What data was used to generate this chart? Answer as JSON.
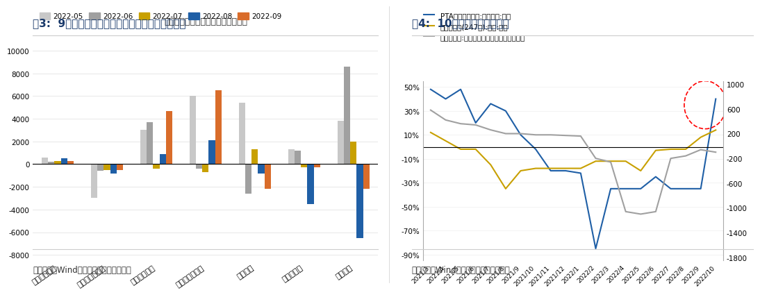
{
  "chart1": {
    "title": "图3:  9月社融结构：企业长短期贷款继续明显回升",
    "subtitle": "社会融资主要分项同比多增（亿元）",
    "categories": [
      "居民短期贷款",
      "居民中长期贷款",
      "企业短期贷款",
      "企业中长期贷款",
      "票据融资",
      "企业债融资",
      "政府债券"
    ],
    "series_labels": [
      "2022-05",
      "2022-06",
      "2022-07",
      "2022-08",
      "2022-09"
    ],
    "series_colors": [
      "#c8c8c8",
      "#a0a0a0",
      "#c8a000",
      "#1f5fa6",
      "#d96c2a"
    ],
    "data": {
      "2022-05": [
        600,
        -3000,
        3000,
        6000,
        5400,
        1300,
        3800
      ],
      "2022-06": [
        200,
        -600,
        3700,
        -400,
        -2600,
        1200,
        8600
      ],
      "2022-07": [
        300,
        -500,
        -400,
        -700,
        1300,
        -300,
        2000
      ],
      "2022-08": [
        500,
        -800,
        900,
        2100,
        -800,
        -3500,
        -6500
      ],
      "2022-09": [
        300,
        -500,
        4700,
        6500,
        -2200,
        -300,
        -2200
      ]
    },
    "ylim": [
      -8500,
      10500
    ],
    "yticks": [
      -8000,
      -6000,
      -4000,
      -2000,
      0,
      2000,
      4000,
      6000,
      8000,
      10000
    ],
    "source": "数据来源：Wind，广发证券发展研究中心"
  },
  "chart2": {
    "title": "图4:  10月经济高频数据回落",
    "legend": [
      "PTA产业链负荷率:江浙织机:同比",
      "高炉开工率(247家):全国:同比",
      "地铁客运量:上海同比增加（万人次，右轴）"
    ],
    "line_colors": [
      "#1f5fa6",
      "#c8a000",
      "#a0a0a0"
    ],
    "x_labels": [
      "2021/3",
      "2021/4",
      "2021/5",
      "2021/6",
      "2021/7",
      "2021/8",
      "2021/9",
      "2021/10",
      "2021/11",
      "2021/12",
      "2022/1",
      "2022/2",
      "2022/3",
      "2022/4",
      "2022/5",
      "2022/6",
      "2022/7",
      "2022/8",
      "2022/9",
      "2022/10"
    ],
    "pta_data": [
      48,
      40,
      48,
      20,
      36,
      30,
      10,
      -2,
      -20,
      -20,
      -22,
      -85,
      -35,
      -35,
      -35,
      -25,
      -35,
      -35,
      -35,
      40
    ],
    "blast_data": [
      12,
      5,
      -2,
      -2,
      -15,
      -35,
      -20,
      -18,
      -18,
      -18,
      -18,
      -12,
      -12,
      -12,
      -20,
      -3,
      -2,
      -2,
      8,
      14
    ],
    "subway_data": [
      580,
      420,
      360,
      340,
      260,
      200,
      200,
      180,
      180,
      170,
      160,
      -200,
      -260,
      -1060,
      -1100,
      -1060,
      -200,
      -160,
      -60,
      -100
    ],
    "ylim_left": [
      -95,
      55
    ],
    "ylim_right": [
      -1850,
      1050
    ],
    "yticks_left": [
      -90,
      -70,
      -50,
      -30,
      -10,
      10,
      30,
      50
    ],
    "yticks_right": [
      -1800,
      -1400,
      -1000,
      -600,
      -200,
      200,
      600,
      1000
    ],
    "source": "数据来源：Wind，广发证券发展研究中心"
  },
  "bg_color": "#f5f5f5",
  "title_color": "#1a3a6b",
  "source_color": "#333333"
}
